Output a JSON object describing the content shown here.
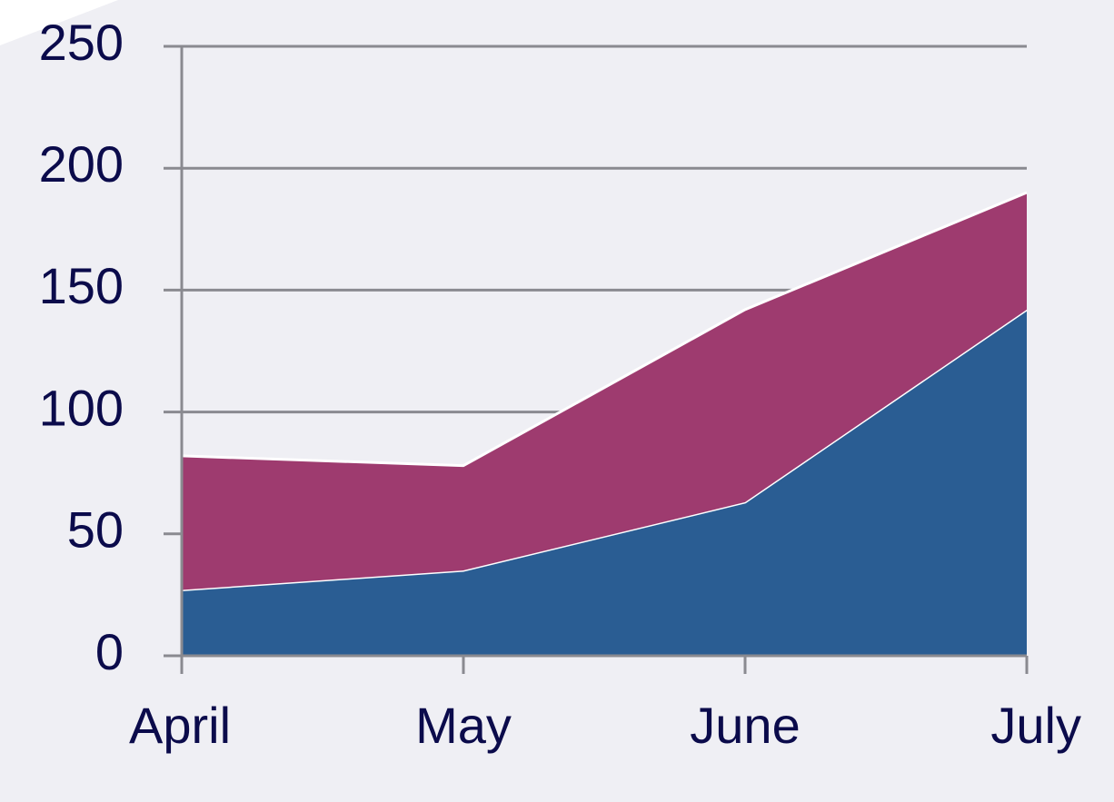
{
  "chart_data": {
    "type": "stacked-area",
    "categories": [
      "April",
      "May",
      "June",
      "July"
    ],
    "series": [
      {
        "color": "#2a5d93",
        "values": [
          27,
          35,
          63,
          142
        ]
      },
      {
        "color": "#9e3b6f",
        "values": [
          55,
          43,
          79,
          48
        ]
      }
    ],
    "ylim": [
      0,
      250
    ],
    "yticks": [
      0,
      50,
      100,
      150,
      200,
      250
    ],
    "grid": true
  }
}
